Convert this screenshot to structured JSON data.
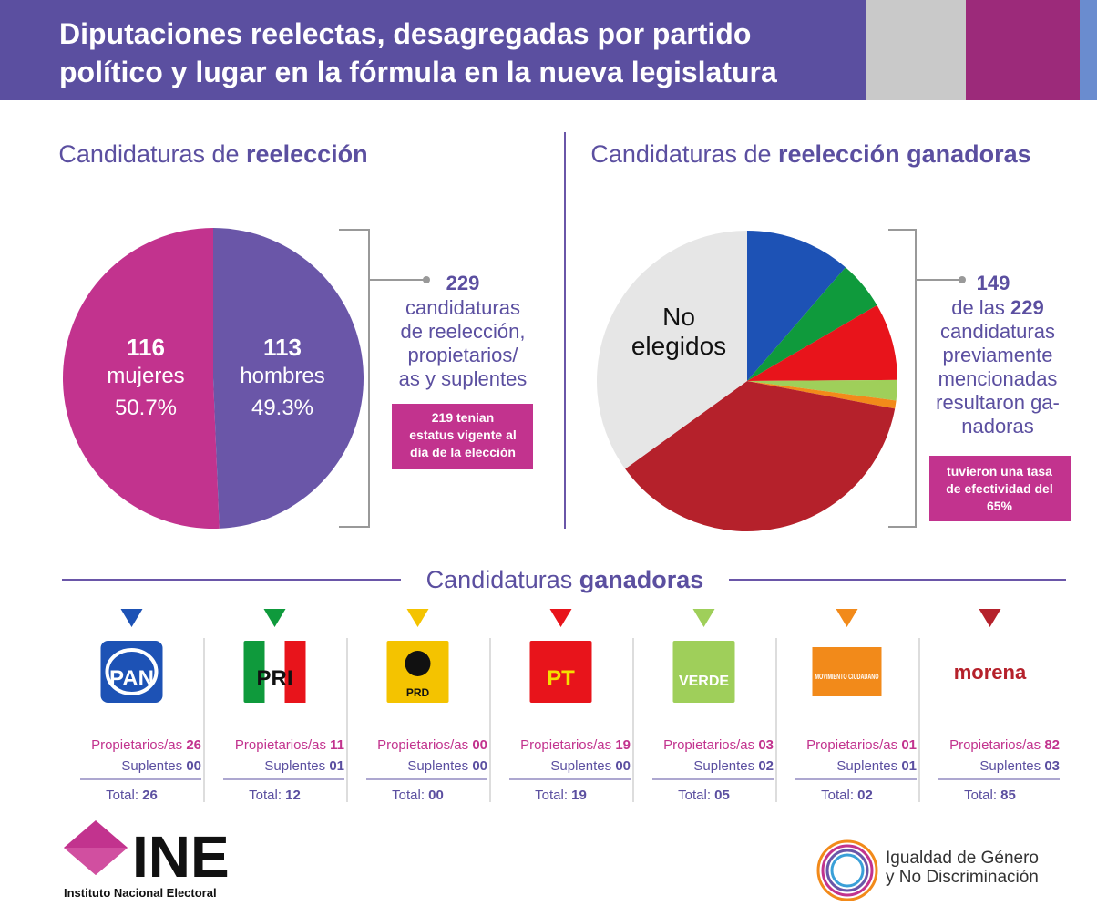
{
  "header": {
    "title_lines": [
      "Diputaciones reelectas, desagregadas por partido",
      "político y lugar en la fórmula en la nueva legislatura"
    ]
  },
  "chart_data": [
    {
      "type": "pie",
      "title_parts": [
        "Candidaturas de ",
        "reelección"
      ],
      "categories": [
        "mujeres",
        "hombres"
      ],
      "values": [
        116,
        113
      ],
      "percent_labels": [
        "50.7%",
        "49.3%"
      ],
      "colors": [
        "#c2338e",
        "#6a56a8"
      ],
      "direction": "counterclockwise"
    },
    {
      "type": "pie",
      "title_parts": [
        "Candidaturas de ",
        "reelección ganadoras"
      ],
      "categories": [
        "PAN",
        "PRI",
        "PRD",
        "PT",
        "VERDE",
        "MOVIMIENTO CIUDADANO",
        "morena",
        "No elegidos"
      ],
      "values": [
        26,
        12,
        0,
        19,
        5,
        2,
        85,
        80
      ],
      "label_lines": [
        "No",
        "elegidos"
      ],
      "colors": [
        "#1d52b5",
        "#0f9a3c",
        "#f4d300",
        "#e8141b",
        "#9fcf5a",
        "#f28a1a",
        "#b5212b",
        "#e6e6e6"
      ],
      "direction": "clockwise"
    }
  ],
  "note_left": {
    "number": "229",
    "lines": [
      "candidaturas",
      "de reelección,",
      "propietarios/",
      "as y suplentes"
    ],
    "box": [
      "219 tenian",
      "estatus vigente al",
      "día de la elección"
    ]
  },
  "note_right": {
    "number": "149",
    "line_parts": [
      "de las ",
      "229"
    ],
    "lines": [
      "candidaturas",
      "previamente",
      "mencionadas",
      "resultaron ga-",
      "nadoras"
    ],
    "box": [
      "tuvieron una tasa",
      "de efectividad del",
      "65%"
    ]
  },
  "section": {
    "title_parts": [
      "Candidaturas ",
      "ganadoras"
    ],
    "propietarios": "Propietarios/as ",
    "suplentes": "Suplentes ",
    "total": "Total: "
  },
  "parties": [
    {
      "logo": "PAN",
      "color": "#1d52b5",
      "propietarios": "26",
      "suplentes": "00",
      "total": "26"
    },
    {
      "logo": "PRI",
      "color": "#0f9a3c",
      "propietarios": "11",
      "suplentes": "01",
      "total": "12"
    },
    {
      "logo": "PRD",
      "color": "#f4c300",
      "propietarios": "00",
      "suplentes": "00",
      "total": "00"
    },
    {
      "logo": "PT",
      "color": "#e8141b",
      "propietarios": "19",
      "suplentes": "00",
      "total": "19"
    },
    {
      "logo": "VERDE",
      "color": "#9fcf5a",
      "propietarios": "03",
      "suplentes": "02",
      "total": "05"
    },
    {
      "logo": "MOVIMIENTO CIUDADANO",
      "color": "#f28a1a",
      "propietarios": "01",
      "suplentes": "01",
      "total": "02"
    },
    {
      "logo": "morena",
      "color": "#b5212b",
      "propietarios": "82",
      "suplentes": "03",
      "total": "85"
    }
  ],
  "footer": {
    "ine": "INE",
    "ine_name": "Instituto Nacional Electoral",
    "igualdad": [
      "Igualdad de Género",
      "y No Discriminación"
    ]
  }
}
